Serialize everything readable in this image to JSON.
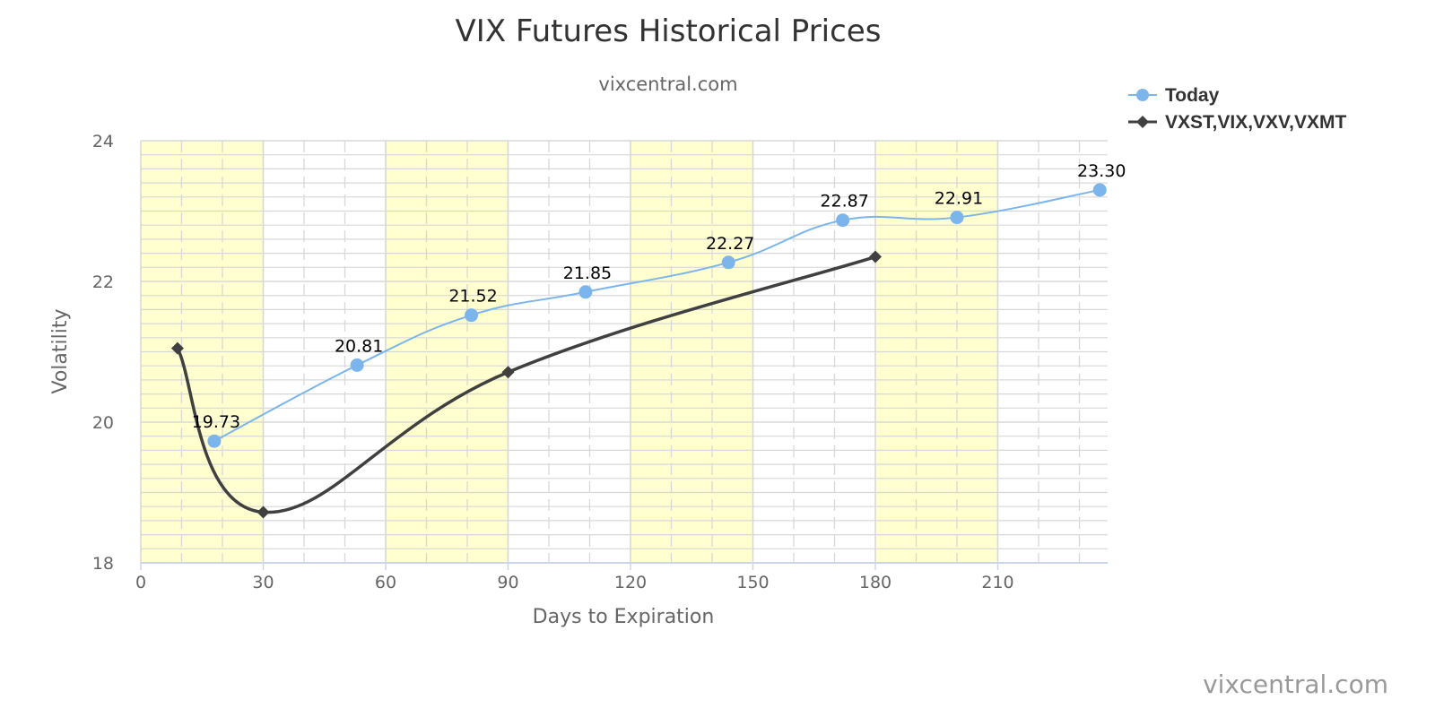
{
  "chart_data": {
    "type": "line",
    "title": "VIX Futures Historical Prices",
    "subtitle": "vixcentral.com",
    "credit": "vixcentral.com",
    "xlabel": "Days to Expiration",
    "ylabel": "Volatility",
    "xlim": [
      0,
      237
    ],
    "ylim": [
      18,
      24
    ],
    "x_ticks": [
      "0",
      "30",
      "60",
      "90",
      "120",
      "150",
      "180",
      "210"
    ],
    "y_ticks": [
      "18",
      "20",
      "22",
      "24"
    ],
    "grid": true,
    "legend_position": "top-right",
    "shaded_bands": [
      [
        0,
        30
      ],
      [
        60,
        90
      ],
      [
        120,
        150
      ],
      [
        180,
        210
      ]
    ],
    "colors": {
      "band": "#ffffd0",
      "grid": "#d8d8d8",
      "series_today": "#7cb5ec",
      "series_indices": "#404040"
    },
    "series": [
      {
        "name": "Today",
        "marker": "circle",
        "x": [
          18,
          53,
          81,
          109,
          144,
          172,
          200,
          235
        ],
        "y": [
          19.73,
          20.81,
          21.52,
          21.85,
          22.27,
          22.87,
          22.91,
          23.3
        ],
        "labels": [
          "19.73",
          "20.81",
          "21.52",
          "21.85",
          "22.27",
          "22.87",
          "22.91",
          "23.30"
        ]
      },
      {
        "name": "VXST,VIX,VXV,VXMT",
        "marker": "diamond",
        "x": [
          9,
          30,
          90,
          180
        ],
        "y": [
          21.05,
          18.72,
          20.71,
          22.35
        ]
      }
    ]
  }
}
